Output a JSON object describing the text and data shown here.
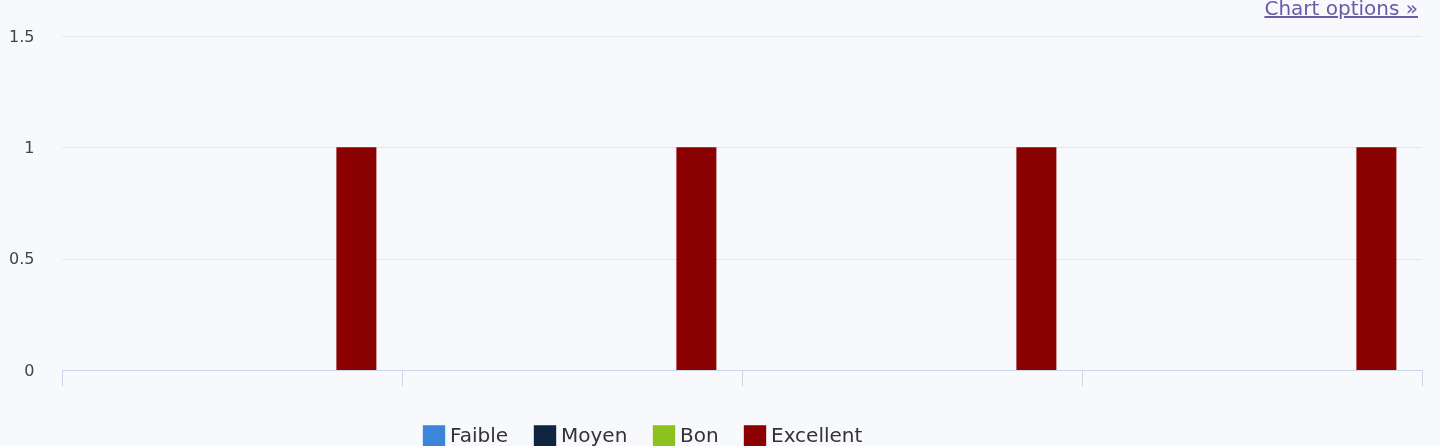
{
  "chart_data": {
    "type": "bar",
    "categories": [
      null,
      null,
      null,
      null
    ],
    "series": [
      {
        "name": "Faible",
        "color": "#3b86d8",
        "values": [
          0,
          0,
          0,
          0
        ]
      },
      {
        "name": "Moyen",
        "color": "#0f2541",
        "values": [
          0,
          0,
          0,
          0
        ]
      },
      {
        "name": "Bon",
        "color": "#8cc11f",
        "values": [
          0,
          0,
          0,
          0
        ]
      },
      {
        "name": "Excellent",
        "color": "#8b0000",
        "values": [
          1,
          1,
          1,
          1
        ]
      }
    ],
    "ylim": [
      0,
      1.5
    ],
    "yticks": [
      0,
      0.5,
      1,
      1.5
    ],
    "grid": "y",
    "legend": "bottom",
    "annotations": [
      "Chart options »"
    ]
  }
}
